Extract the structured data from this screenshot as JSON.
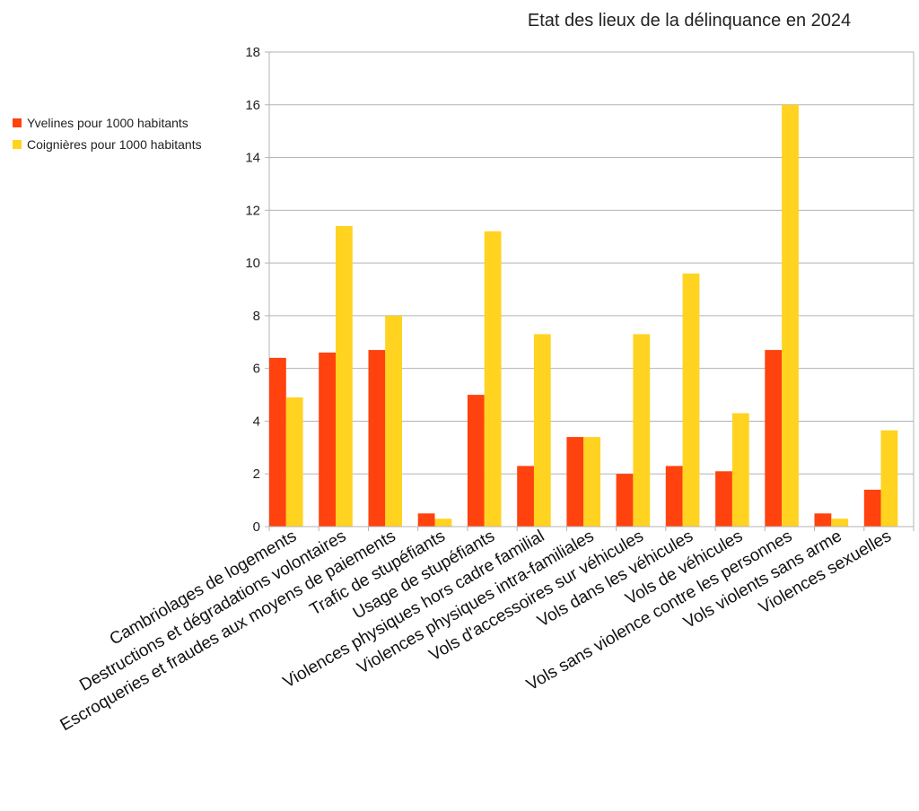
{
  "chart_data": {
    "type": "bar",
    "title": "Etat des lieux de la délinquance en 2024",
    "xlabel": "",
    "ylabel": "",
    "ylim": [
      0,
      18
    ],
    "yticks": [
      0,
      2,
      4,
      6,
      8,
      10,
      12,
      14,
      16,
      18
    ],
    "grid": true,
    "legend_position": "left",
    "categories": [
      "Cambriolages de logements",
      "Destructions et dégradations volontaires",
      "Escroqueries et fraudes aux moyens de paiements",
      "Trafic de stupéfiants",
      "Usage de stupéfiants",
      "Violences physiques hors cadre familial",
      "Violences physiques intra-familiales",
      "Vols d'accessoires sur véhicules",
      "Vols dans les véhicules",
      "Vols de véhicules",
      "Vols sans violence contre les personnes",
      "Vols violents sans arme",
      "Violences sexuelles"
    ],
    "series": [
      {
        "name": "Yvelines pour 1000 habitants",
        "color": "#ff420e",
        "values": [
          6.4,
          6.6,
          6.7,
          0.5,
          5.0,
          2.3,
          3.4,
          2.0,
          2.3,
          2.1,
          6.7,
          0.5,
          1.4
        ]
      },
      {
        "name": "Coignières pour 1000 habitants",
        "color": "#ffd320",
        "values": [
          4.9,
          11.4,
          8.0,
          0.3,
          11.2,
          7.3,
          3.4,
          7.3,
          9.6,
          4.3,
          16.0,
          0.3,
          3.65
        ]
      }
    ]
  }
}
